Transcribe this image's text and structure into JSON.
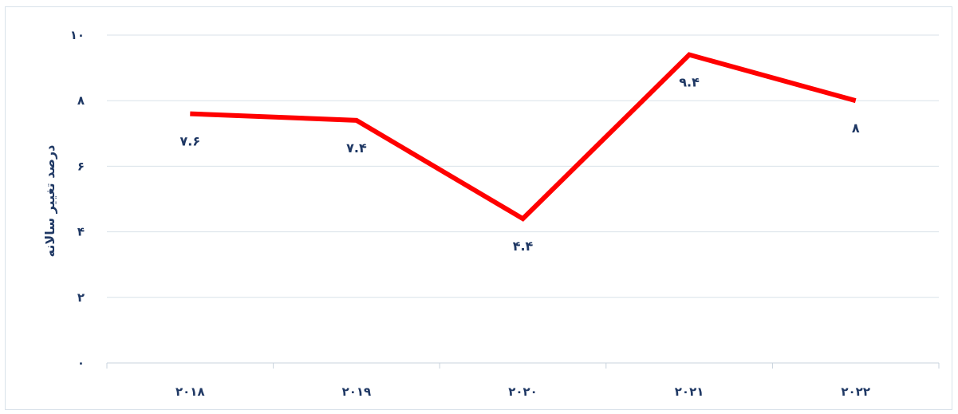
{
  "chart_data": {
    "type": "line",
    "title": "",
    "xlabel": "",
    "ylabel": "درصد تغییر سالانه",
    "categories": [
      "۲۰۱۸",
      "۲۰۱۹",
      "۲۰۲۰",
      "۲۰۲۱",
      "۲۰۲۲"
    ],
    "values": [
      7.6,
      7.4,
      4.4,
      9.4,
      8
    ],
    "data_labels": [
      "۷.۶",
      "۷.۴",
      "۴.۴",
      "۹.۴",
      "۸"
    ],
    "ylim": [
      0,
      10
    ],
    "yticks": [
      0,
      2,
      4,
      6,
      8,
      10
    ],
    "ytick_labels": [
      "۰",
      "۲",
      "۴",
      "۶",
      "۸",
      "۱۰"
    ],
    "grid": true,
    "line_color": "#ff0000",
    "grid_color": "#d9e2ea"
  }
}
